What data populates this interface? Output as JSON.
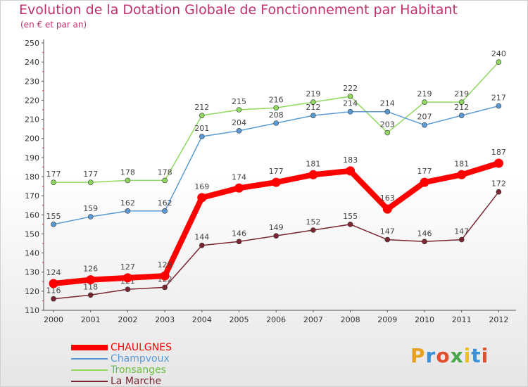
{
  "title": "Evolution de la Dotation Globale de Fonctionnement par Habitant",
  "subtitle": "(en € et par an)",
  "brand": {
    "letters": [
      "P",
      "r",
      "o",
      "x",
      "i",
      "t",
      "i"
    ],
    "colors": [
      "#e8a020",
      "#3d8fd6",
      "#e05030",
      "#4aa84a",
      "#e8c020",
      "#3d8fd6",
      "#e05030"
    ]
  },
  "chart_data": {
    "type": "line",
    "x": [
      "2000",
      "2001",
      "2002",
      "2003",
      "2004",
      "2005",
      "2006",
      "2007",
      "2008",
      "2009",
      "2010",
      "2011",
      "2012"
    ],
    "ylim": [
      110,
      250
    ],
    "yticks": [
      110,
      120,
      130,
      140,
      150,
      160,
      170,
      180,
      190,
      200,
      210,
      220,
      230,
      240,
      250
    ],
    "grid": false,
    "legend_position": "bottom-left",
    "series": [
      {
        "name": "Tronsanges",
        "color": "#90d860",
        "line_width": 1.5,
        "marker_radius": 3.5,
        "values": [
          177,
          177,
          178,
          178,
          212,
          215,
          216,
          219,
          222,
          203,
          219,
          219,
          240
        ]
      },
      {
        "name": "Champvoux",
        "color": "#5b9bd5",
        "line_width": 1.5,
        "marker_radius": 3.5,
        "values": [
          155,
          159,
          162,
          162,
          201,
          204,
          208,
          212,
          214,
          214,
          207,
          212,
          217
        ]
      },
      {
        "name": "La Marche",
        "color": "#7a2530",
        "line_width": 1.5,
        "marker_radius": 3.5,
        "values": [
          116,
          118,
          121,
          122,
          144,
          146,
          149,
          152,
          155,
          147,
          146,
          147,
          172
        ]
      },
      {
        "name": "CHAULGNES",
        "color": "#ff0000",
        "line_width": 8,
        "marker_radius": 6.5,
        "values": [
          124,
          126,
          127,
          128,
          169,
          174,
          177,
          181,
          183,
          163,
          177,
          181,
          187
        ]
      }
    ],
    "legend_order": [
      "CHAULGNES",
      "Champvoux",
      "Tronsanges",
      "La Marche"
    ]
  }
}
